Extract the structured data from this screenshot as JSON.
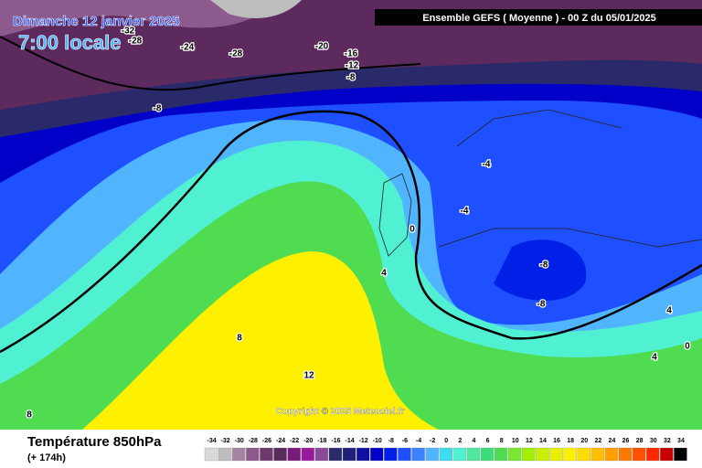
{
  "header": {
    "date": "Dimanche 12 janvier 2025",
    "time": "7:00 locale",
    "run": "Ensemble GEFS  ( Moyenne )  - 00 Z du 05/01/2025"
  },
  "map": {
    "copyright": "Copyright © 2025 Meteociel.fr",
    "contour_labels": [
      -32,
      -28,
      -24,
      -28,
      -20,
      -16,
      -12,
      -8,
      -8,
      -4,
      -4,
      0,
      4,
      -8,
      -8,
      4,
      0,
      4,
      8,
      12,
      8
    ]
  },
  "footer": {
    "parameter": "Température 850hPa",
    "lead": "(+ 174h)"
  },
  "legend": {
    "values": [
      -34,
      -32,
      -30,
      -28,
      -26,
      -24,
      -22,
      -20,
      -18,
      -16,
      -14,
      -12,
      -10,
      -8,
      -6,
      -4,
      -2,
      0,
      2,
      4,
      6,
      8,
      10,
      12,
      14,
      16,
      18,
      20,
      22,
      24,
      26,
      28,
      30,
      32,
      34
    ],
    "colors": [
      "#d9d9d9",
      "#bdbdbd",
      "#a385a3",
      "#8c5a8c",
      "#6e3a6e",
      "#5c2a5c",
      "#7a1a7a",
      "#9a1a9a",
      "#8a4a9a",
      "#2a2a6a",
      "#20207a",
      "#1010a0",
      "#0000c8",
      "#0020e8",
      "#1e50ff",
      "#3c82ff",
      "#50b4ff",
      "#3cdcf0",
      "#50f0d2",
      "#50e6a0",
      "#3cdc78",
      "#50dc50",
      "#78e632",
      "#a0f000",
      "#c8f000",
      "#e6f000",
      "#fff000",
      "#ffdc00",
      "#ffbe00",
      "#ffa000",
      "#ff7800",
      "#ff5000",
      "#ff2800",
      "#c80000",
      "#000000"
    ]
  }
}
